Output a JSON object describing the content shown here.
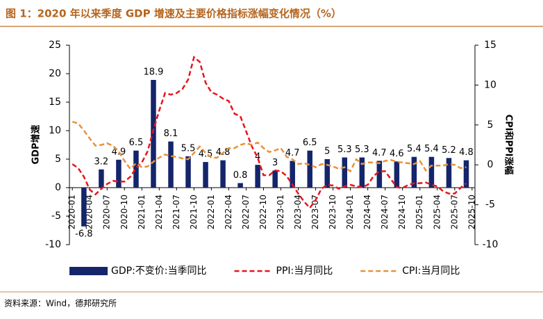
{
  "chart_data": {
    "type": "bar-line",
    "title": "图 1：2020 年以来季度 GDP 增速及主要价格指标涨幅变化情况（%）",
    "source": "资料来源：Wind，德邦研究所",
    "ylabel": "GDP增速",
    "y2label": "CPI和PPI涨幅",
    "categories": [
      "2020-01",
      null,
      null,
      "2020-04",
      null,
      null,
      "2020-07",
      null,
      null,
      "2020-10",
      null,
      null,
      "2021-01",
      null,
      null,
      "2021-04",
      null,
      null,
      "2021-07",
      null,
      null,
      "2021-10",
      null,
      null,
      "2022-01",
      null,
      null,
      "2022-04",
      null,
      null,
      "2022-07",
      null,
      null,
      "2022-10",
      null,
      null,
      "2023-01",
      null,
      null,
      "2023-04",
      null,
      null,
      "2023-07",
      null,
      null,
      "2023-10",
      null,
      null,
      "2024-01",
      null,
      null,
      "2024-04",
      null,
      null,
      "2024-07",
      null,
      null,
      "2024-10",
      null,
      null,
      "2025-01",
      null,
      null,
      "2025-04",
      null,
      null,
      "2025-07",
      null,
      null,
      "2025-10"
    ],
    "series": [
      {
        "name": "GDP:不变价:当季同比",
        "type": "bar",
        "color": "#14256b",
        "values": [
          null,
          null,
          -6.8,
          null,
          null,
          3.2,
          null,
          null,
          4.9,
          null,
          null,
          6.5,
          null,
          null,
          18.9,
          null,
          null,
          8.1,
          null,
          null,
          5.5,
          null,
          null,
          4.5,
          null,
          null,
          4.8,
          null,
          null,
          0.8,
          null,
          null,
          4,
          null,
          null,
          3,
          null,
          null,
          4.7,
          null,
          null,
          6.5,
          null,
          null,
          5,
          null,
          null,
          5.3,
          null,
          null,
          5.3,
          null,
          null,
          4.7,
          null,
          null,
          4.6,
          null,
          null,
          5.4,
          null,
          null,
          5.4,
          null,
          null,
          5.2,
          null,
          null,
          4.8,
          null
        ]
      },
      {
        "name": "PPI:当月同比",
        "type": "line",
        "axis": "y2",
        "color": "#e8141b",
        "values": [
          0.1,
          -0.4,
          -1.5,
          -3.1,
          -3.7,
          -3.0,
          -2.4,
          -2.0,
          -2.1,
          -2.1,
          -1.5,
          -0.4,
          0.3,
          1.7,
          4.4,
          6.8,
          9.0,
          8.8,
          9.0,
          9.5,
          10.7,
          13.5,
          12.9,
          10.3,
          9.1,
          8.8,
          8.3,
          8.0,
          6.4,
          6.1,
          4.2,
          2.3,
          0.9,
          -1.3,
          -1.3,
          -0.7,
          -0.8,
          -1.4,
          -2.5,
          -3.6,
          -4.6,
          -5.4,
          -4.4,
          -3.0,
          -2.5,
          -2.6,
          -3.0,
          -2.7,
          -2.5,
          -2.7,
          -2.8,
          -2.5,
          -1.4,
          -0.8,
          -0.8,
          -1.8,
          -2.8,
          -2.9,
          -2.5,
          -2.3,
          -2.3,
          -2.2,
          -2.5,
          -2.7,
          -3.3,
          -3.6,
          -3.6,
          -2.9,
          -2.3,
          null
        ]
      },
      {
        "name": "CPI:当月同比",
        "type": "line",
        "axis": "y2",
        "color": "#e8913a",
        "values": [
          5.4,
          5.2,
          4.3,
          3.3,
          2.4,
          2.5,
          2.7,
          2.4,
          1.7,
          0.5,
          -0.5,
          0.2,
          -0.3,
          -0.2,
          0.4,
          0.9,
          1.3,
          1.1,
          1.0,
          0.8,
          0.7,
          1.5,
          2.3,
          1.5,
          0.9,
          0.9,
          1.5,
          2.1,
          2.1,
          2.5,
          2.7,
          2.5,
          2.8,
          2.1,
          1.6,
          1.8,
          2.1,
          1.0,
          0.7,
          0.1,
          0.2,
          0.0,
          -0.3,
          0.1,
          0.0,
          -0.2,
          -0.5,
          -0.3,
          -0.8,
          0.7,
          0.1,
          0.3,
          0.3,
          0.2,
          0.5,
          0.6,
          0.4,
          0.3,
          0.2,
          0.1,
          0.5,
          -0.7,
          -0.1,
          -0.1,
          -0.1,
          0.1,
          0.0,
          -0.4,
          -0.3,
          null
        ]
      }
    ],
    "ylim": [
      -10,
      25
    ],
    "yticks": [
      -10,
      -5,
      0,
      5,
      10,
      15,
      20,
      25
    ],
    "y2lim": [
      -10,
      15
    ],
    "y2ticks": [
      -10,
      -5,
      0,
      5,
      10,
      15
    ],
    "legend": "bottom"
  }
}
